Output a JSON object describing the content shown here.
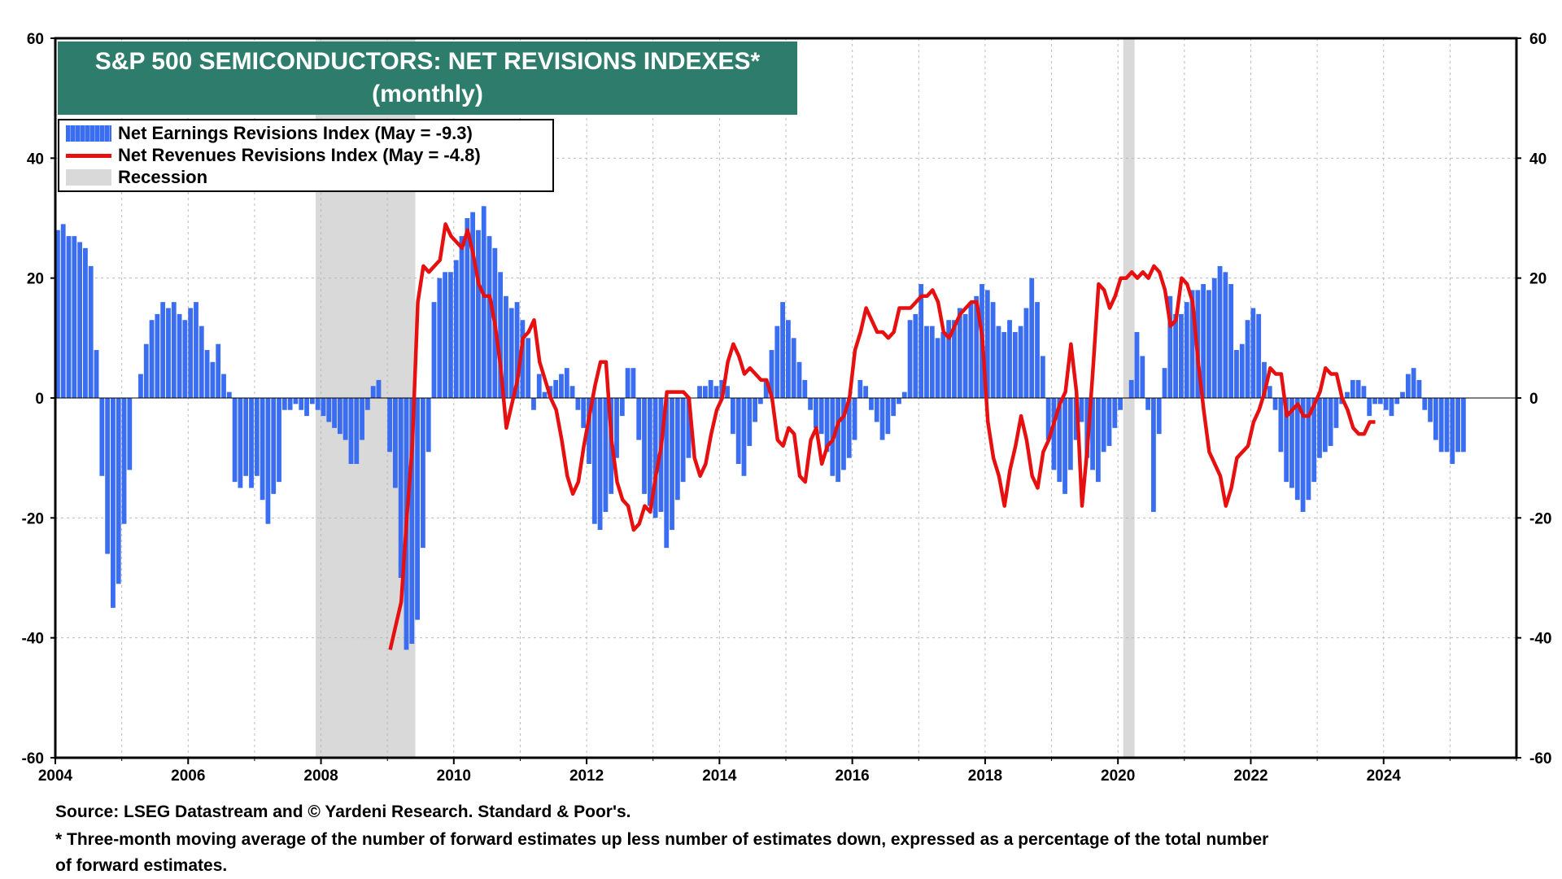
{
  "title": {
    "line1": "S&P 500 SEMICONDUCTORS: NET REVISIONS INDEXES*",
    "line2": "(monthly)"
  },
  "legend": {
    "earnings": "Net Earnings Revisions Index (May  = -9.3)",
    "revenues": "Net Revenues Revisions Index (May  = -4.8)",
    "recession": "Recession"
  },
  "footer": {
    "source": "Source: LSEG Datastream and © Yardeni Research. Standard & Poor's.",
    "note1": "* Three-month moving average of the number of forward estimates up less number of estimates down, expressed as a percentage of the total number",
    "note2": " of forward estimates."
  },
  "colors": {
    "bars": "#3a6df0",
    "line": "#e61010",
    "recession": "#d9d9d9",
    "title_bg": "#2e7d6c"
  },
  "chart_data": {
    "type": "bar",
    "title": "S&P 500 SEMICONDUCTORS: NET REVISIONS INDEXES* (monthly)",
    "xlim": [
      2004.0,
      2026.0
    ],
    "ylim": [
      -60,
      60
    ],
    "y_ticks": [
      60,
      40,
      20,
      0,
      -20,
      -40,
      -60
    ],
    "x_ticks": [
      2004,
      2006,
      2008,
      2010,
      2012,
      2014,
      2016,
      2018,
      2020,
      2022,
      2024
    ],
    "recessions": [
      [
        2007.92,
        2009.42
      ],
      [
        2020.08,
        2020.25
      ]
    ],
    "series": [
      {
        "name": "Net Earnings Revisions Index",
        "kind": "bar",
        "start": 2004.0,
        "step": 0.0833333,
        "values": [
          28,
          29,
          27,
          27,
          26,
          25,
          22,
          8,
          -13,
          -26,
          -35,
          -31,
          -21,
          -12,
          0,
          4,
          9,
          13,
          14,
          16,
          15,
          16,
          14,
          13,
          15,
          16,
          12,
          8,
          6,
          9,
          4,
          1,
          -14,
          -15,
          -13,
          -15,
          -13,
          -17,
          -21,
          -16,
          -14,
          -2,
          -2,
          -1,
          -2,
          -3,
          -1,
          -2,
          -3,
          -4,
          -5,
          -6,
          -7,
          -11,
          -11,
          -7,
          -2,
          2,
          3,
          0,
          -9,
          -15,
          -30,
          -42,
          -41,
          -37,
          -25,
          -9,
          16,
          20,
          21,
          21,
          23,
          27,
          30,
          31,
          28,
          32,
          27,
          25,
          21,
          17,
          15,
          16,
          13,
          10,
          -2,
          4,
          1,
          2,
          3,
          4,
          5,
          2,
          -2,
          -5,
          -11,
          -21,
          -22,
          -19,
          -16,
          -10,
          -3,
          5,
          5,
          -7,
          -16,
          -18,
          -20,
          -19,
          -25,
          -22,
          -17,
          -14,
          -10,
          0,
          2,
          2,
          3,
          2,
          3,
          2,
          -6,
          -11,
          -13,
          -8,
          -4,
          -1,
          3,
          8,
          12,
          16,
          13,
          10,
          6,
          3,
          -2,
          -5,
          -6,
          -9,
          -13,
          -14,
          -12,
          -10,
          -7,
          3,
          2,
          -2,
          -4,
          -7,
          -6,
          -3,
          -1,
          1,
          13,
          14,
          19,
          12,
          12,
          10,
          11,
          13,
          13,
          15,
          14,
          16,
          17,
          19,
          18,
          16,
          12,
          11,
          13,
          11,
          12,
          15,
          20,
          16,
          7,
          -7,
          -12,
          -14,
          -16,
          -12,
          -7,
          -4,
          -10,
          -12,
          -14,
          -9,
          -8,
          -5,
          -2,
          0,
          3,
          11,
          7,
          -2,
          -19,
          -6,
          5,
          17,
          14,
          14,
          16,
          18,
          18,
          19,
          18,
          20,
          22,
          21,
          19,
          8,
          9,
          13,
          15,
          14,
          6,
          2,
          -2,
          -9,
          -14,
          -15,
          -17,
          -19,
          -17,
          -14,
          -10,
          -9,
          -8,
          -5,
          -1,
          1,
          3,
          3,
          2,
          -3,
          -1,
          -1,
          -2,
          -3,
          -1,
          1,
          4,
          5,
          3,
          -2,
          -4,
          -7,
          -9,
          -9,
          -11,
          -9,
          -9
        ]
      },
      {
        "name": "Net Revenues Revisions Index",
        "kind": "line",
        "start": 2009.0,
        "step": 0.0833333,
        "values": [
          -42,
          -38,
          -34,
          -20,
          -8,
          16,
          22,
          21,
          22,
          23,
          29,
          27,
          26,
          25,
          28,
          24,
          19,
          17,
          17,
          12,
          5,
          -5,
          -1,
          3,
          10,
          11,
          13,
          6,
          3,
          0,
          -2,
          -7,
          -13,
          -16,
          -14,
          -8,
          -3,
          2,
          6,
          6,
          -7,
          -14,
          -17,
          -18,
          -22,
          -21,
          -18,
          -19,
          -13,
          -8,
          1,
          1,
          1,
          1,
          0,
          -10,
          -13,
          -11,
          -6,
          -2,
          0,
          6,
          9,
          7,
          4,
          5,
          4,
          3,
          3,
          0,
          -7,
          -8,
          -5,
          -6,
          -13,
          -14,
          -7,
          -5,
          -11,
          -8,
          -7,
          -4,
          -3,
          0,
          8,
          11,
          15,
          13,
          11,
          11,
          10,
          11,
          15,
          15,
          15,
          16,
          17,
          17,
          18,
          16,
          11,
          10,
          12,
          14,
          15,
          16,
          16,
          10,
          -4,
          -10,
          -13,
          -18,
          -12,
          -8,
          -3,
          -7,
          -13,
          -15,
          -9,
          -7,
          -4,
          -1,
          1,
          9,
          1,
          -18,
          -8,
          5,
          19,
          18,
          15,
          17,
          20,
          20,
          21,
          20,
          21,
          20,
          22,
          21,
          18,
          12,
          13,
          20,
          19,
          16,
          6,
          -2,
          -9,
          -11,
          -13,
          -18,
          -15,
          -10,
          -9,
          -8,
          -4,
          -2,
          1,
          5,
          4,
          4,
          -3,
          -2,
          -1,
          -3,
          -3,
          -1,
          1,
          5,
          4,
          4,
          0,
          -2,
          -5,
          -6,
          -6,
          -4,
          -4
        ]
      }
    ],
    "x_tick_labels": [
      "2004",
      "2006",
      "2008",
      "2010",
      "2012",
      "2014",
      "2016",
      "2018",
      "2020",
      "2022",
      "2024"
    ],
    "y_tick_labels": [
      "60",
      "40",
      "20",
      "0",
      "-20",
      "-40",
      "-60"
    ]
  }
}
